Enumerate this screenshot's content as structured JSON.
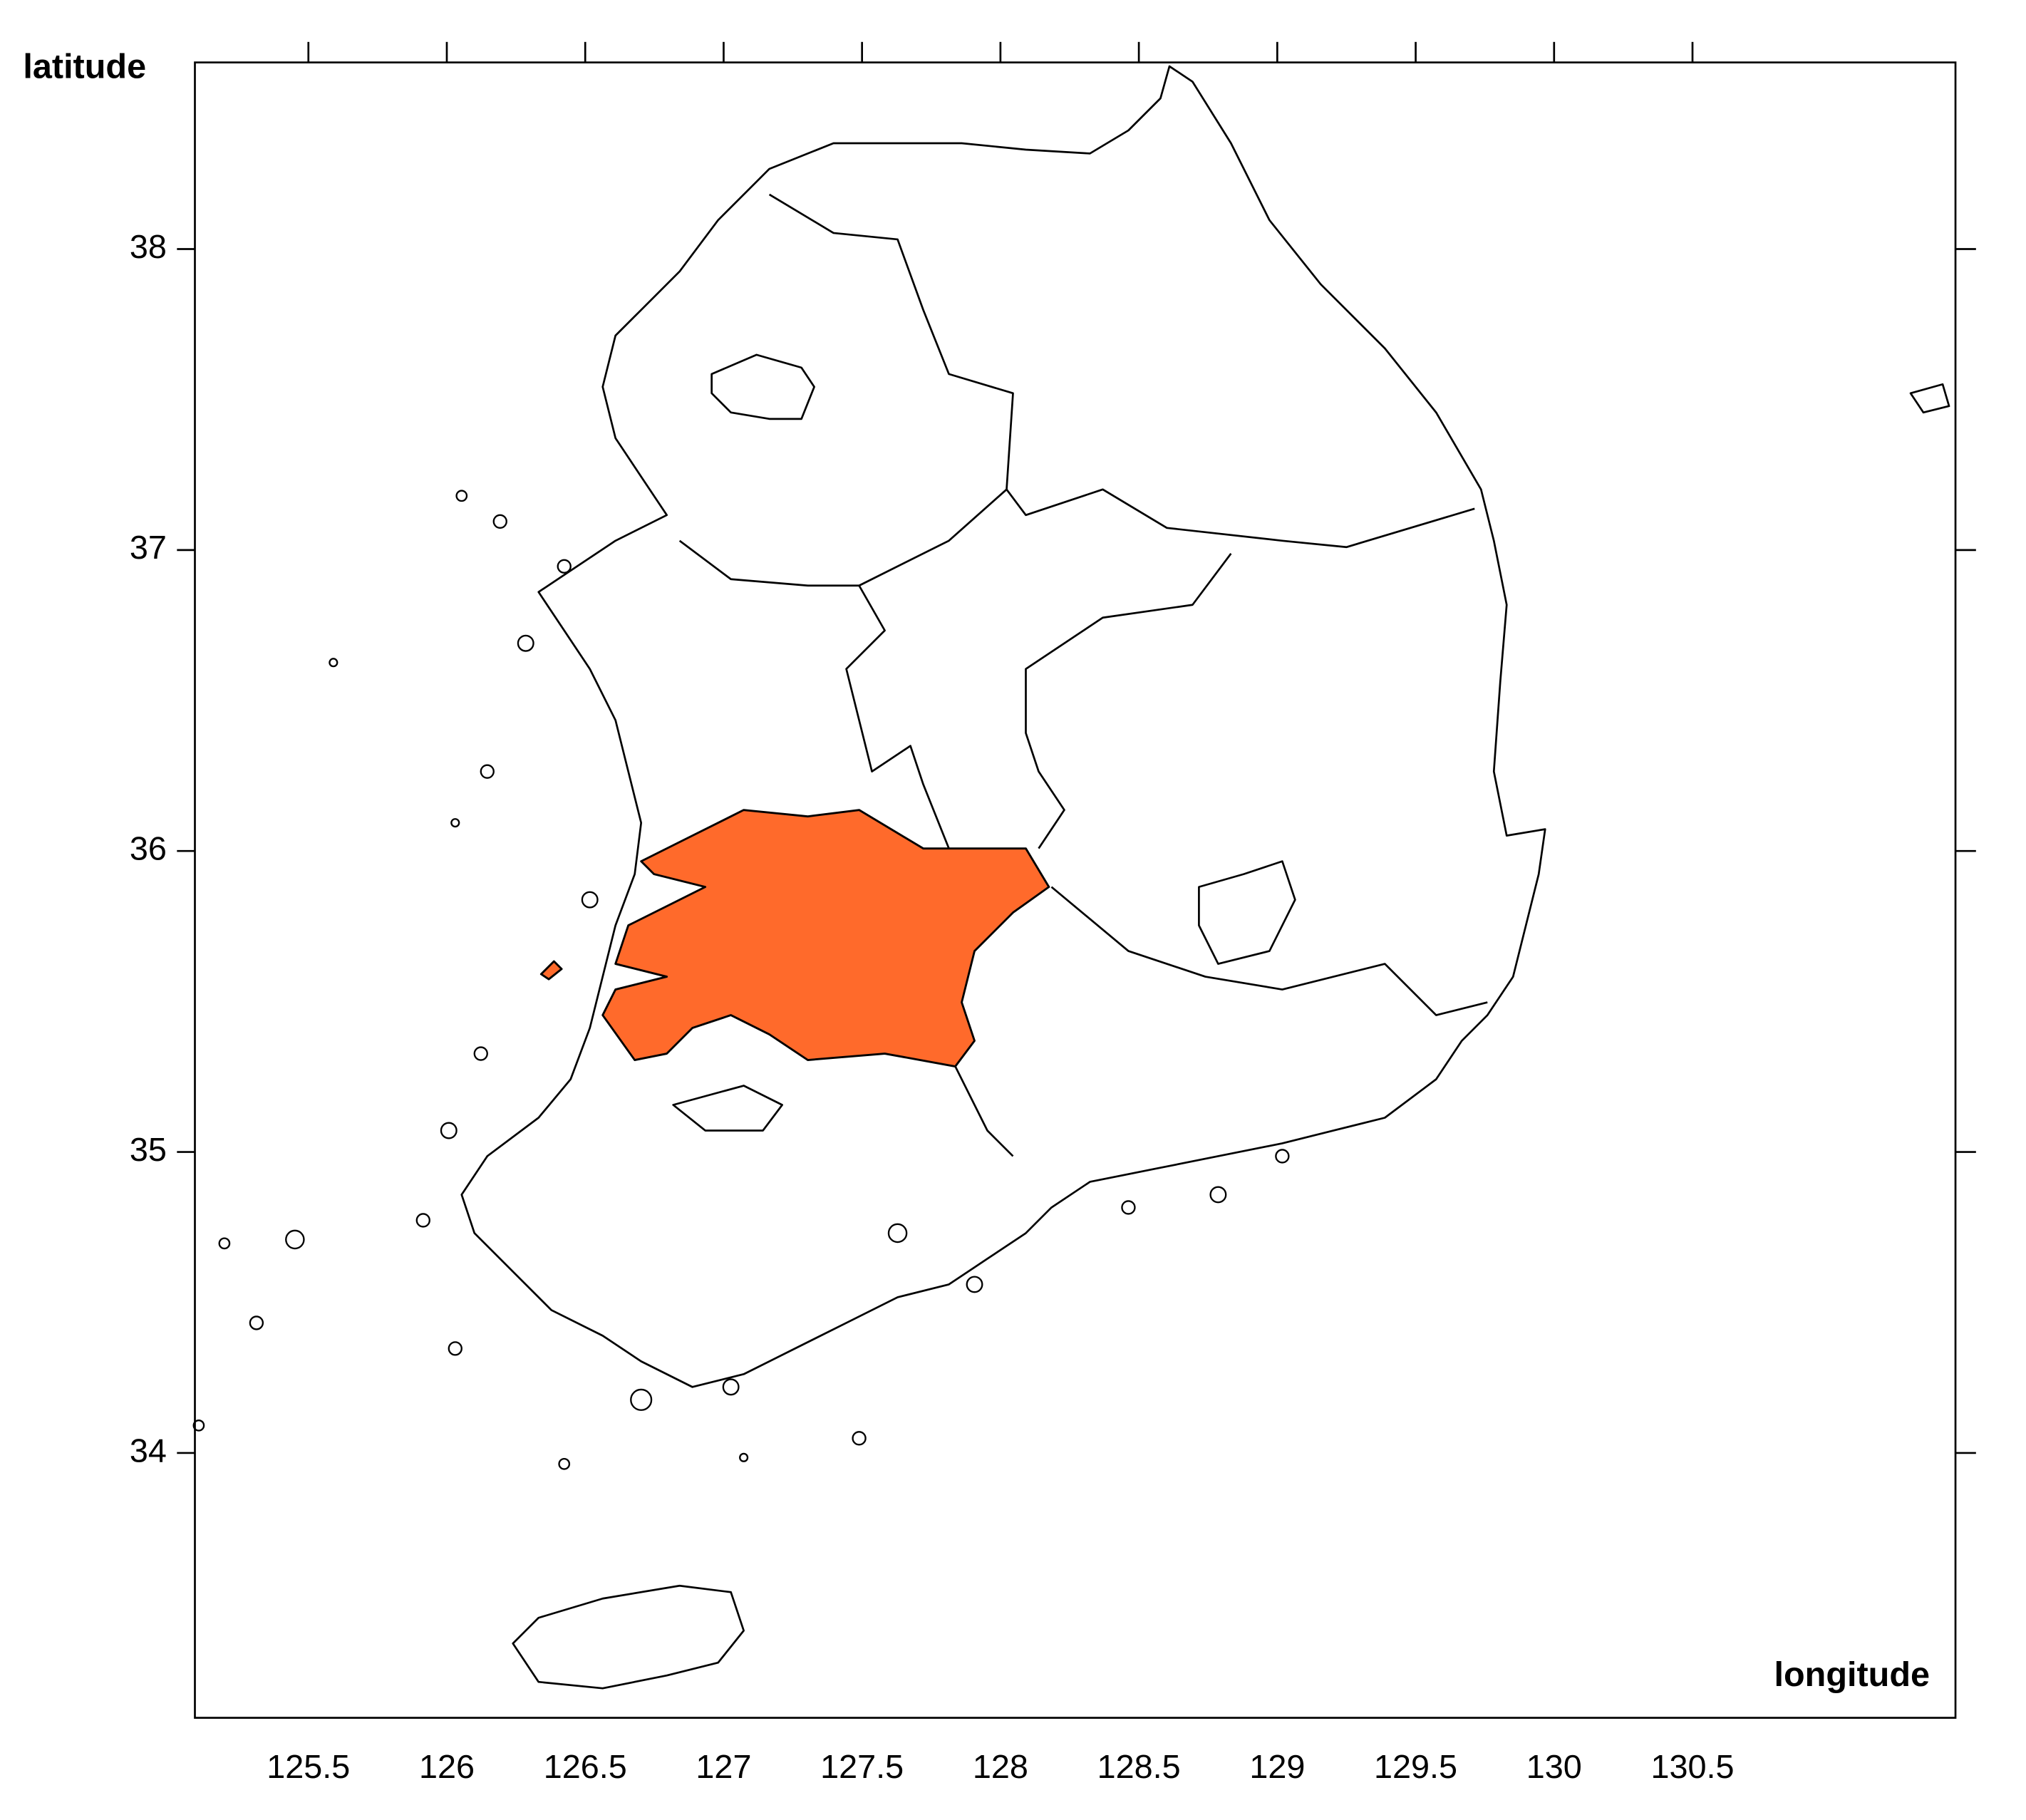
{
  "chart_data": {
    "type": "map",
    "ylabel": "latitude",
    "xlabel": "longitude",
    "xlim": [
      125.09,
      131.45
    ],
    "ylim": [
      33.12,
      38.62
    ],
    "xticks": [
      125.5,
      126,
      126.5,
      127,
      127.5,
      128,
      128.5,
      129,
      129.5,
      130,
      130.5
    ],
    "yticks": [
      34,
      35,
      36,
      37,
      38
    ]
  }
}
